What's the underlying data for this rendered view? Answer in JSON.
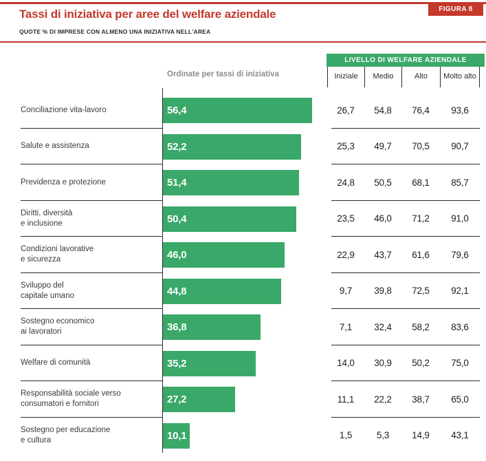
{
  "page": {
    "figure_badge": "FIGURA 8",
    "title": "Tassi di iniziativa per aree del welfare aziendale",
    "subtitle": "QUOTE % DI IMPRESE CON ALMENO UNA INIZIATIVA NELL'AREA"
  },
  "chart_data": {
    "type": "bar",
    "orientation": "horizontal",
    "title": "Tassi di iniziativa per aree del welfare aziendale",
    "subtitle": "QUOTE % DI IMPRESE CON ALMENO UNA INIZIATIVA NELL'AREA",
    "bar_column_header": "Ordinate per tassi di iniziativa",
    "table_group_header": "LIVELLO DI WELFARE AZIENDALE",
    "table_columns": [
      "Iniziale",
      "Medio",
      "Alto",
      "Molto alto"
    ],
    "categories": [
      "Conciliazione vita-lavoro",
      "Salute e assistenza",
      "Previdenza e protezione",
      "Diritti, diversità\ne inclusione",
      "Condizioni lavorative\ne sicurezza",
      "Sviluppo del\ncapitale umano",
      "Sostegno economico\nai lavoratori",
      "Welfare di comunità",
      "Responsabilità sociale verso\nconsumatori e fornitori",
      "Sostegno per educazione\ne cultura"
    ],
    "bar_values": [
      56.4,
      52.2,
      51.4,
      50.4,
      46.0,
      44.8,
      36.8,
      35.2,
      27.2,
      10.1
    ],
    "series": [
      {
        "name": "Iniziale",
        "values": [
          26.7,
          25.3,
          24.8,
          23.5,
          22.9,
          9.7,
          7.1,
          14.0,
          11.1,
          1.5
        ]
      },
      {
        "name": "Medio",
        "values": [
          54.8,
          49.7,
          50.5,
          46.0,
          43.7,
          39.8,
          32.4,
          30.9,
          22.2,
          5.3
        ]
      },
      {
        "name": "Alto",
        "values": [
          76.4,
          70.5,
          68.1,
          71.2,
          61.6,
          72.5,
          58.2,
          50.2,
          38.7,
          14.9
        ]
      },
      {
        "name": "Molto alto",
        "values": [
          93.6,
          90.7,
          85.7,
          91.0,
          79.6,
          92.1,
          83.6,
          75.0,
          65.0,
          43.1
        ]
      }
    ],
    "xlim": [
      0,
      60
    ],
    "decimal_separator": ",",
    "grid": false,
    "legend": false
  },
  "colors": {
    "accent_red": "#c4392b",
    "bar_green": "#3aa868",
    "line_dark": "#2b2a28",
    "note_gray": "#8c8c8c"
  }
}
